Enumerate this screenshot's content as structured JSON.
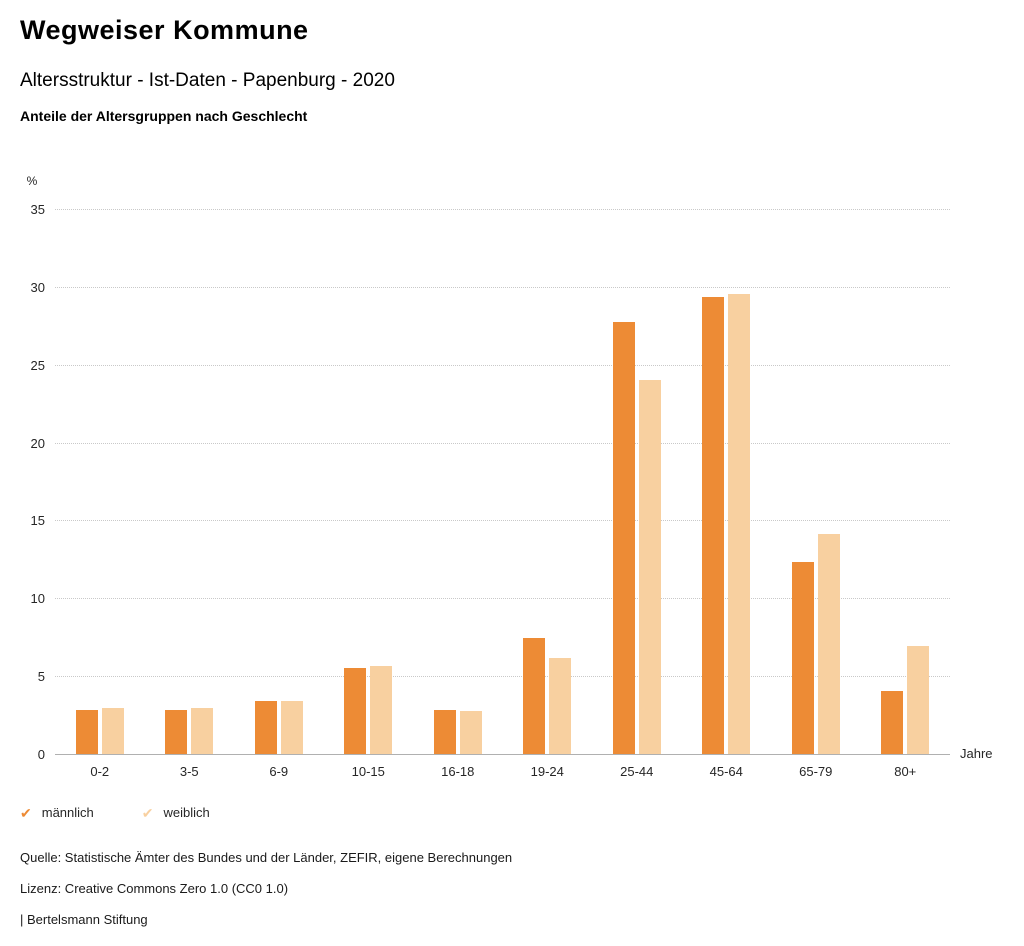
{
  "header": {
    "title": "Wegweiser Kommune",
    "subtitle": "Altersstruktur - Ist-Daten - Papenburg - 2020",
    "heading": "Anteile der Altersgruppen nach Geschlecht"
  },
  "chart_data": {
    "type": "bar",
    "categories": [
      "0-2",
      "3-5",
      "6-9",
      "10-15",
      "16-18",
      "19-24",
      "25-44",
      "45-64",
      "65-79",
      "80+"
    ],
    "series": [
      {
        "name": "männlich",
        "color": "#ed8b35",
        "values": [
          2.9,
          2.9,
          3.5,
          5.6,
          2.9,
          7.5,
          27.8,
          29.4,
          12.4,
          4.1
        ]
      },
      {
        "name": "weiblich",
        "color": "#f8d0a0",
        "values": [
          3.0,
          3.0,
          3.5,
          5.7,
          2.8,
          6.2,
          24.1,
          29.6,
          14.2,
          7.0
        ]
      }
    ],
    "unit_label": "%",
    "xlabel": "Jahre",
    "ylim": [
      0,
      35
    ],
    "ytick_step": 5,
    "grid": "dotted horizontal gridlines, solid baseline",
    "legend_position": "bottom-left"
  },
  "icons": {
    "legend_check": "✔"
  },
  "legend": [
    {
      "label": "männlich",
      "color": "#ed8b35"
    },
    {
      "label": "weiblich",
      "color": "#f8d0a0"
    }
  ],
  "footer": {
    "source": "Quelle: Statistische Ämter des Bundes und der Länder, ZEFIR, eigene Berechnungen",
    "license": "Lizenz: Creative Commons Zero 1.0 (CC0 1.0)",
    "brand": "| Bertelsmann Stiftung"
  }
}
